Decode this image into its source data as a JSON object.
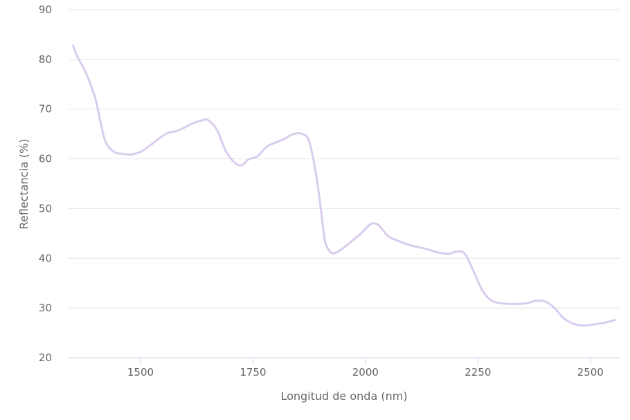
{
  "chart_data": {
    "type": "line",
    "title": "",
    "xlabel": "Longitud de onda (nm)",
    "ylabel": "Reflectancia (%)",
    "xlim": [
      1340,
      2565
    ],
    "ylim": [
      20,
      90
    ],
    "x_ticks": [
      1500,
      1750,
      2000,
      2250,
      2500
    ],
    "y_ticks": [
      20,
      30,
      40,
      50,
      60,
      70,
      80,
      90
    ],
    "grid": true,
    "legend": false,
    "colors": {
      "line": "#d9ccec",
      "grid": "#e6e6e6",
      "axis": "#ccd6eb",
      "text": "#666666"
    },
    "series": [
      {
        "x": [
          1350,
          1360,
          1380,
          1400,
          1420,
          1440,
          1460,
          1480,
          1500,
          1520,
          1540,
          1560,
          1580,
          1600,
          1620,
          1640,
          1650,
          1670,
          1690,
          1710,
          1725,
          1740,
          1760,
          1780,
          1800,
          1820,
          1840,
          1860,
          1875,
          1890,
          1900,
          1910,
          1920,
          1930,
          1950,
          1970,
          1990,
          2010,
          2020,
          2030,
          2050,
          2070,
          2100,
          2130,
          2160,
          2185,
          2200,
          2220,
          2240,
          2260,
          2280,
          2300,
          2330,
          2360,
          2380,
          2400,
          2420,
          2440,
          2460,
          2480,
          2500,
          2530,
          2555
        ],
        "y": [
          82.8,
          80.5,
          77.0,
          72.0,
          64.0,
          61.5,
          61.0,
          60.9,
          61.4,
          62.6,
          64.0,
          65.2,
          65.6,
          66.4,
          67.3,
          67.8,
          67.8,
          65.8,
          61.5,
          59.2,
          58.7,
          59.9,
          60.5,
          62.4,
          63.3,
          64.0,
          65.0,
          65.0,
          63.5,
          57.0,
          50.5,
          43.5,
          41.5,
          41.0,
          42.0,
          43.5,
          45.0,
          46.8,
          47.0,
          46.6,
          44.5,
          43.6,
          42.6,
          42.0,
          41.2,
          40.9,
          41.3,
          41.0,
          37.5,
          33.5,
          31.5,
          31.0,
          30.8,
          31.0,
          31.5,
          31.3,
          30.0,
          28.0,
          26.9,
          26.5,
          26.6,
          27.0,
          27.6
        ]
      }
    ]
  }
}
